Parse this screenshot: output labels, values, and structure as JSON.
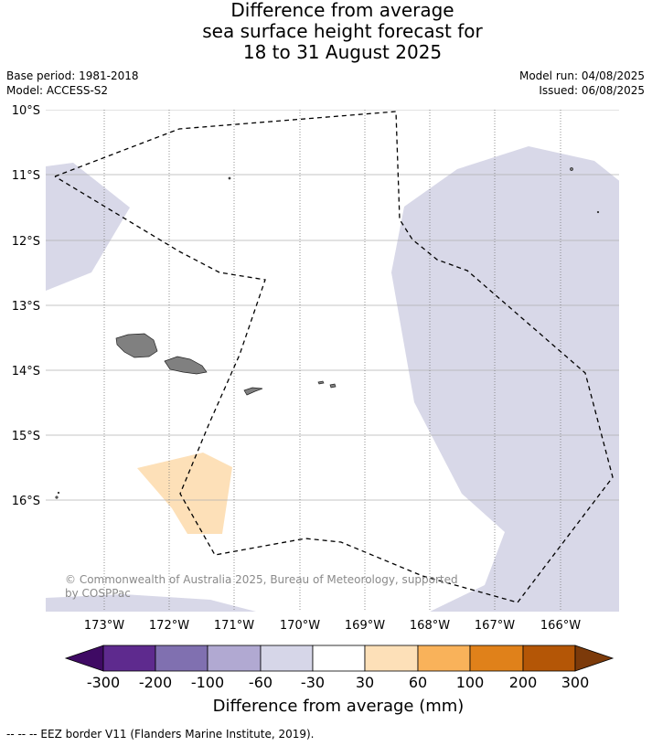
{
  "title": {
    "line1": "Difference from average",
    "line2": "sea surface height forecast for",
    "line3": "18 to 31 August 2025"
  },
  "meta": {
    "base_period": "Base period: 1981-2018",
    "model": "Model: ACCESS-S2",
    "model_run": "Model run: 04/08/2025",
    "issued": "Issued: 06/08/2025"
  },
  "map": {
    "lat_labels": [
      "10°S",
      "11°S",
      "12°S",
      "13°S",
      "14°S",
      "15°S",
      "16°S"
    ],
    "lon_labels": [
      "173°W",
      "172°W",
      "171°W",
      "170°W",
      "169°W",
      "168°W",
      "167°W",
      "166°W"
    ],
    "land_color": "#808080",
    "eez_line_style": "dashed",
    "copyright_line1": "© Commonwealth of Australia 2025, Bureau of Meteorology, supported",
    "copyright_line2": "by COSPPac"
  },
  "colorbar": {
    "tick_labels": [
      "-300",
      "-200",
      "-100",
      "-60",
      "-30",
      "30",
      "60",
      "100",
      "200",
      "300"
    ],
    "colors": [
      "#3f0a64",
      "#5e2a8e",
      "#8070b0",
      "#b1a9d2",
      "#d6d6e8",
      "#ffffff",
      "#fde0b8",
      "#f9b25a",
      "#e0811a",
      "#b45606",
      "#7c3a0a"
    ],
    "label": "Difference from average (mm)"
  },
  "footnote": "--  --  -- EEZ border V11 (Flanders Marine Institute, 2019)."
}
